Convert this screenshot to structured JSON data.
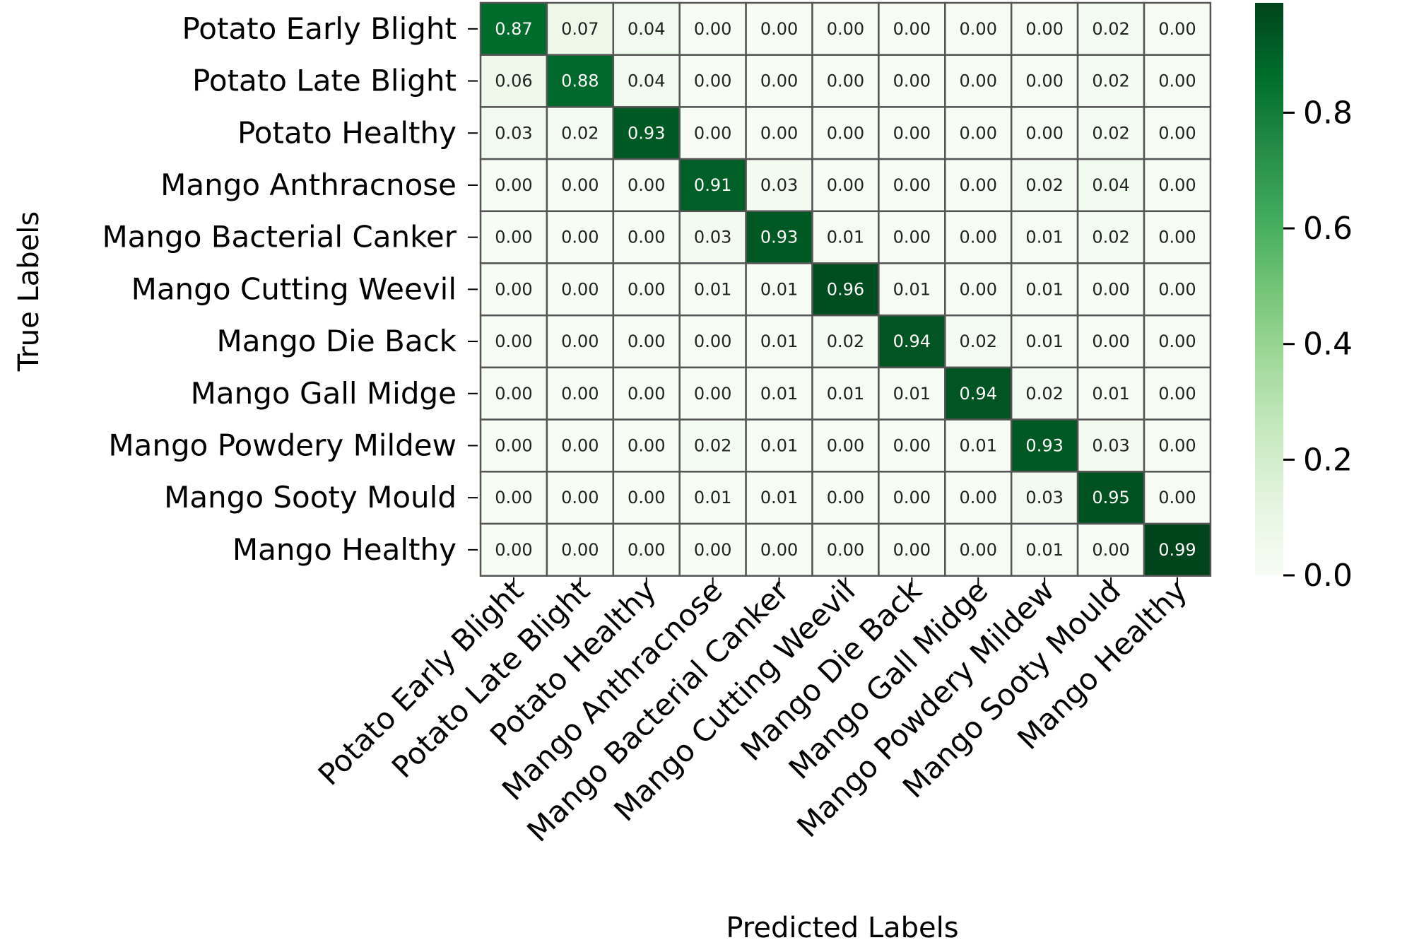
{
  "chart_data": {
    "type": "heatmap",
    "title": "",
    "xlabel": "Predicted Labels",
    "ylabel": "True Labels",
    "row_labels": [
      "Potato Early Blight",
      "Potato Late Blight",
      "Potato Healthy",
      "Mango Anthracnose",
      "Mango Bacterial Canker",
      "Mango Cutting Weevil",
      "Mango Die Back",
      "Mango Gall Midge",
      "Mango Powdery Mildew",
      "Mango Sooty Mould",
      "Mango Healthy"
    ],
    "col_labels": [
      "Potato Early Blight",
      "Potato Late Blight",
      "Potato Healthy",
      "Mango Anthracnose",
      "Mango Bacterial Canker",
      "Mango Cutting Weevil",
      "Mango Die Back",
      "Mango Gall Midge",
      "Mango Powdery Mildew",
      "Mango Sooty Mould",
      "Mango Healthy"
    ],
    "values": [
      [
        "0.87",
        "0.07",
        "0.04",
        "0.00",
        "0.00",
        "0.00",
        "0.00",
        "0.00",
        "0.00",
        "0.02",
        "0.00"
      ],
      [
        "0.06",
        "0.88",
        "0.04",
        "0.00",
        "0.00",
        "0.00",
        "0.00",
        "0.00",
        "0.00",
        "0.02",
        "0.00"
      ],
      [
        "0.03",
        "0.02",
        "0.93",
        "0.00",
        "0.00",
        "0.00",
        "0.00",
        "0.00",
        "0.00",
        "0.02",
        "0.00"
      ],
      [
        "0.00",
        "0.00",
        "0.00",
        "0.91",
        "0.03",
        "0.00",
        "0.00",
        "0.00",
        "0.02",
        "0.04",
        "0.00"
      ],
      [
        "0.00",
        "0.00",
        "0.00",
        "0.03",
        "0.93",
        "0.01",
        "0.00",
        "0.00",
        "0.01",
        "0.02",
        "0.00"
      ],
      [
        "0.00",
        "0.00",
        "0.00",
        "0.01",
        "0.01",
        "0.96",
        "0.01",
        "0.00",
        "0.01",
        "0.00",
        "0.00"
      ],
      [
        "0.00",
        "0.00",
        "0.00",
        "0.00",
        "0.01",
        "0.02",
        "0.94",
        "0.02",
        "0.01",
        "0.00",
        "0.00"
      ],
      [
        "0.00",
        "0.00",
        "0.00",
        "0.00",
        "0.01",
        "0.01",
        "0.01",
        "0.94",
        "0.02",
        "0.01",
        "0.00"
      ],
      [
        "0.00",
        "0.00",
        "0.00",
        "0.02",
        "0.01",
        "0.00",
        "0.00",
        "0.01",
        "0.93",
        "0.03",
        "0.00"
      ],
      [
        "0.00",
        "0.00",
        "0.00",
        "0.01",
        "0.01",
        "0.00",
        "0.00",
        "0.00",
        "0.03",
        "0.95",
        "0.00"
      ],
      [
        "0.00",
        "0.00",
        "0.00",
        "0.00",
        "0.00",
        "0.00",
        "0.00",
        "0.00",
        "0.01",
        "0.00",
        "0.99"
      ]
    ],
    "colorbar": {
      "ticks": [
        "0.0",
        "0.2",
        "0.4",
        "0.6",
        "0.8"
      ],
      "range": [
        0,
        0.99
      ],
      "colormap": "Greens"
    },
    "colors": {
      "low": "#f7fcf5",
      "high": "#00441b",
      "grid_line": "#555555"
    }
  }
}
